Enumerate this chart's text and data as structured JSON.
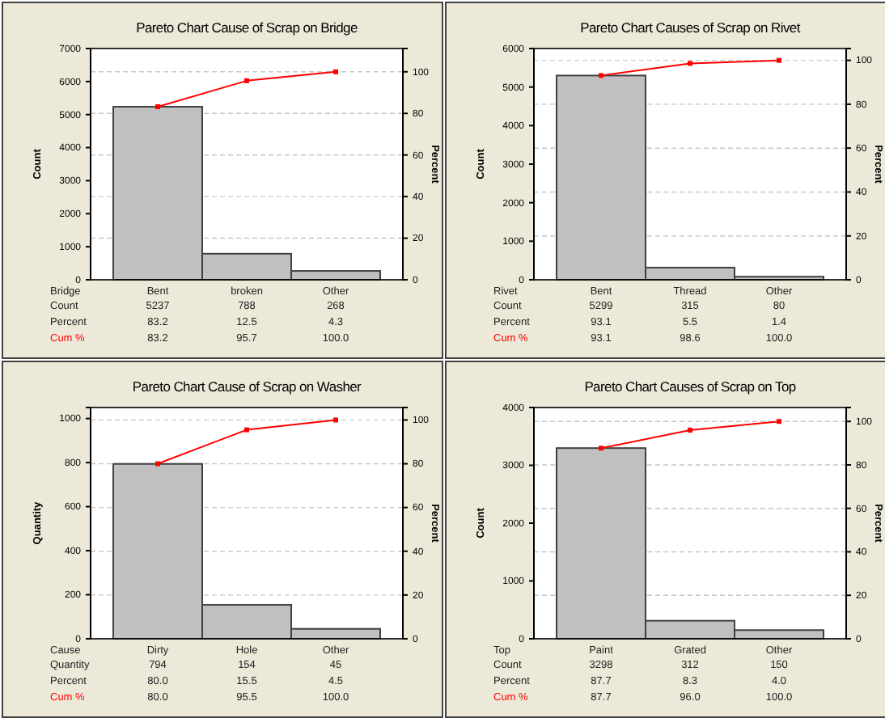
{
  "chart_data": [
    {
      "type": "bar",
      "title": "Pareto Chart Cause of Scrap on Bridge",
      "xlabel": "Bridge",
      "ylabel": "Count",
      "y2label": "Percent",
      "categories": [
        "Bent",
        "broken",
        "Other"
      ],
      "ylim": [
        0,
        7000
      ],
      "yticks": [
        0,
        1000,
        2000,
        3000,
        4000,
        5000,
        6000,
        7000
      ],
      "y2lim": [
        0,
        111.2
      ],
      "y2ticks": [
        0,
        20,
        40,
        60,
        80,
        100
      ],
      "grid": true,
      "data_labels": true,
      "marker": "square",
      "series": [
        {
          "name": "Count",
          "color": "#c0c0c0",
          "values": [
            5237,
            788,
            268
          ]
        },
        {
          "name": "Cum %",
          "type": "line",
          "axis": "y2",
          "color": "#ff0000",
          "values": [
            83.2,
            95.7,
            100
          ],
          "value_labels": [
            "83.2",
            "95.7",
            "100.0"
          ]
        }
      ],
      "annotations": [
        "Percent",
        "83.2",
        "12.5",
        "4.3"
      ]
    },
    {
      "type": "bar",
      "title": "Pareto Chart Causes of Scrap on Rivet",
      "xlabel": "Rivet",
      "ylabel": "Count",
      "y2label": "Percent",
      "categories": [
        "Bent",
        "Thread",
        "Other"
      ],
      "ylim": [
        0,
        6000
      ],
      "yticks": [
        0,
        1000,
        2000,
        3000,
        4000,
        5000,
        6000
      ],
      "y2lim": [
        0,
        105.4
      ],
      "y2ticks": [
        0,
        20,
        40,
        60,
        80,
        100
      ],
      "grid": true,
      "data_labels": true,
      "marker": "square",
      "series": [
        {
          "name": "Count",
          "color": "#c0c0c0",
          "values": [
            5299,
            315,
            80
          ]
        },
        {
          "name": "Cum %",
          "type": "line",
          "axis": "y2",
          "color": "#ff0000",
          "values": [
            93.1,
            98.6,
            100
          ],
          "value_labels": [
            "93.1",
            "98.6",
            "100.0"
          ]
        }
      ],
      "annotations": [
        "Percent",
        "93.1",
        "5.5",
        "1.4"
      ]
    },
    {
      "type": "bar",
      "title": "Pareto Chart Cause of Scrap on Washer",
      "xlabel": "Cause",
      "ylabel": "Quantity",
      "y2label": "Percent",
      "categories": [
        "Dirty",
        "Hole",
        "Other"
      ],
      "ylim": [
        0,
        1050
      ],
      "yticks": [
        0,
        200,
        400,
        600,
        800,
        1000
      ],
      "y2lim": [
        0,
        105.7
      ],
      "y2ticks": [
        0,
        20,
        40,
        60,
        80,
        100
      ],
      "grid": true,
      "data_labels": true,
      "marker": "square",
      "series": [
        {
          "name": "Quantity",
          "color": "#c0c0c0",
          "values": [
            794,
            154,
            45
          ]
        },
        {
          "name": "Cum %",
          "type": "line",
          "axis": "y2",
          "color": "#ff0000",
          "values": [
            80,
            95.5,
            100
          ],
          "value_labels": [
            "80.0",
            "95.5",
            "100.0"
          ]
        }
      ],
      "annotations": [
        "Percent",
        "80.0",
        "15.5",
        "4.5"
      ]
    },
    {
      "type": "bar",
      "title": "Pareto Chart Causes of Scrap on Top",
      "xlabel": "Top",
      "ylabel": "Count",
      "y2label": "Percent",
      "categories": [
        "Paint",
        "Grated",
        "Other"
      ],
      "ylim": [
        0,
        4000
      ],
      "yticks": [
        0,
        1000,
        2000,
        3000,
        4000
      ],
      "y2lim": [
        0,
        106.4
      ],
      "y2ticks": [
        0,
        20,
        40,
        60,
        80,
        100
      ],
      "grid": true,
      "data_labels": true,
      "marker": "square",
      "series": [
        {
          "name": "Count",
          "color": "#c0c0c0",
          "values": [
            3298,
            312,
            150
          ]
        },
        {
          "name": "Cum %",
          "type": "line",
          "axis": "y2",
          "color": "#ff0000",
          "values": [
            87.7,
            96,
            100
          ],
          "value_labels": [
            "87.7",
            "96.0",
            "100.0"
          ]
        }
      ],
      "annotations": [
        "Percent",
        "87.7",
        "8.3",
        "4.0"
      ]
    }
  ]
}
